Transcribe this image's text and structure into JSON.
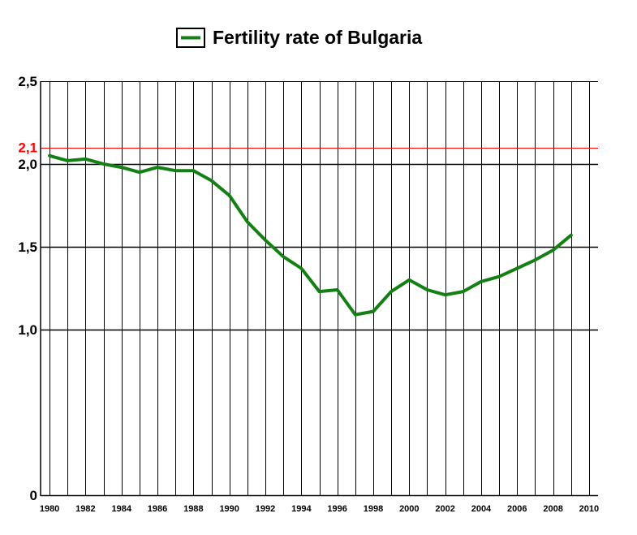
{
  "chart_data": {
    "type": "line",
    "title": "",
    "xlabel": "",
    "ylabel": "",
    "xlim": [
      1979.5,
      2010.5
    ],
    "ylim": [
      0,
      2.5
    ],
    "grid": true,
    "legend_position": "top-center",
    "x_tick_labels": [
      "1980",
      "1982",
      "1984",
      "1986",
      "1988",
      "1990",
      "1992",
      "1994",
      "1996",
      "1998",
      "2000",
      "2002",
      "2004",
      "2006",
      "2008",
      "2010"
    ],
    "x_tick_values": [
      1980,
      1982,
      1984,
      1986,
      1988,
      1990,
      1992,
      1994,
      1996,
      1998,
      2000,
      2002,
      2004,
      2006,
      2008,
      2010
    ],
    "y_tick_labels": [
      "0",
      "1,0",
      "1,5",
      "2,0",
      "2,5"
    ],
    "y_tick_values": [
      0,
      1.0,
      1.5,
      2.0,
      2.5
    ],
    "reference_line": {
      "value": 2.1,
      "label": "2,1",
      "color": "#ff0000"
    },
    "series": [
      {
        "name": "Fertility rate of Bulgaria",
        "color": "#138013",
        "x": [
          1980,
          1981,
          1982,
          1983,
          1984,
          1985,
          1986,
          1987,
          1988,
          1989,
          1990,
          1991,
          1992,
          1993,
          1994,
          1995,
          1996,
          1997,
          1998,
          1999,
          2000,
          2001,
          2002,
          2003,
          2004,
          2005,
          2006,
          2007,
          2008,
          2009
        ],
        "values": [
          2.05,
          2.02,
          2.03,
          2.0,
          1.98,
          1.95,
          1.98,
          1.96,
          1.96,
          1.9,
          1.81,
          1.65,
          1.54,
          1.44,
          1.37,
          1.23,
          1.24,
          1.09,
          1.11,
          1.23,
          1.3,
          1.24,
          1.21,
          1.23,
          1.29,
          1.32,
          1.37,
          1.42,
          1.48,
          1.57
        ]
      }
    ]
  },
  "legend": {
    "label": "Fertility rate of Bulgaria"
  }
}
